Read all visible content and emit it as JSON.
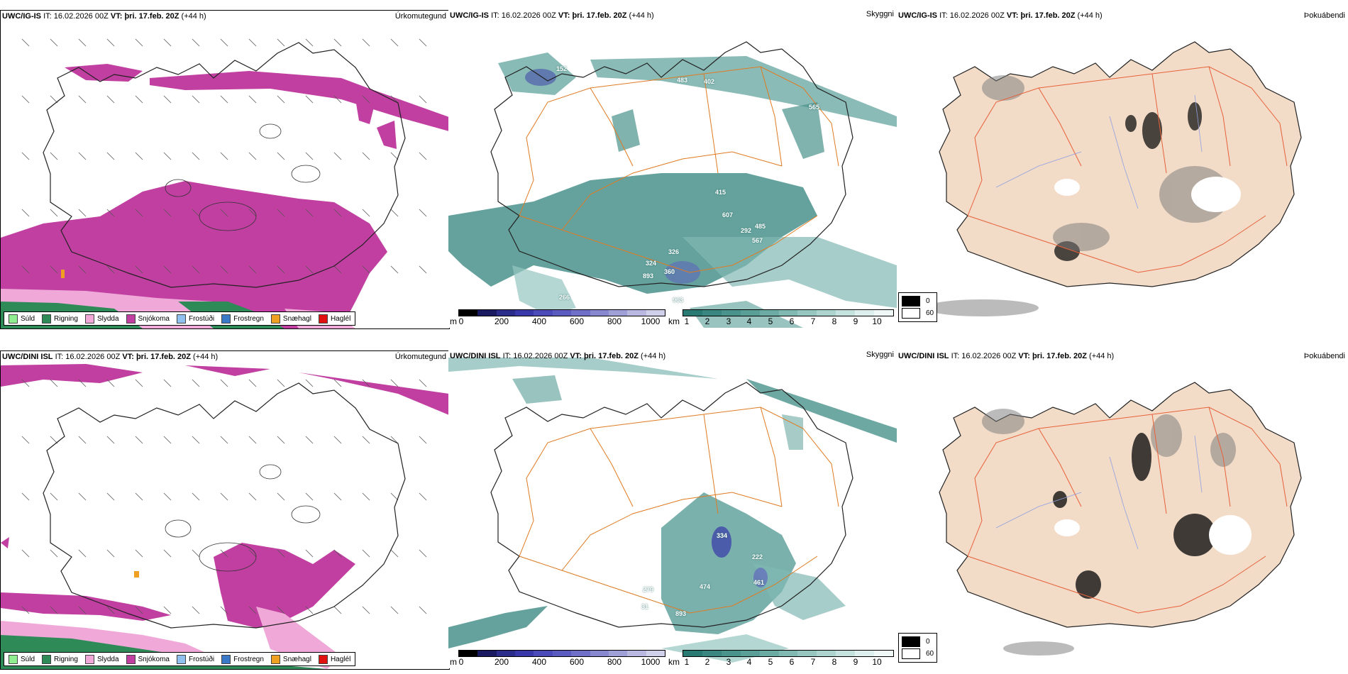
{
  "rows": [
    {
      "model": "UWC/IG-IS",
      "it_label": "IT:",
      "it_value": "16.02.2026 00Z",
      "vt_label": "VT:",
      "vt_value": "þri. 17.feb. 20Z",
      "lead": "(+44 h)"
    },
    {
      "model": "UWC/DINI ISL",
      "it_label": "IT:",
      "it_value": "16.02.2026 00Z",
      "vt_label": "VT:",
      "vt_value": "þri. 17.feb. 20Z",
      "lead": "(+44 h)"
    }
  ],
  "panel_titles": {
    "precip": "Úrkomutegund",
    "visibility": "Skyggni",
    "fog": "Þokuábendi"
  },
  "precip_legend": [
    {
      "label": "Súld",
      "color": "#90ee90"
    },
    {
      "label": "Rigning",
      "color": "#2e8b57"
    },
    {
      "label": "Slydda",
      "color": "#f0a8d8"
    },
    {
      "label": "Snjókoma",
      "color": "#c03fa0"
    },
    {
      "label": "Frostúði",
      "color": "#90c0f0"
    },
    {
      "label": "Frostregn",
      "color": "#3a78c8"
    },
    {
      "label": "Snæhagl",
      "color": "#f0a020"
    },
    {
      "label": "Haglél",
      "color": "#e01010"
    }
  ],
  "vis_bar_m": {
    "unit": "m",
    "ticks": [
      "0",
      "200",
      "400",
      "600",
      "800",
      "1000"
    ],
    "colors": [
      "#000000",
      "#1a1a60",
      "#2c2c8a",
      "#3838a8",
      "#4a4ab8",
      "#5c5cc0",
      "#7070c8",
      "#8888d0",
      "#a0a0d8",
      "#b8b8e0",
      "#d0d0ea"
    ]
  },
  "vis_bar_km": {
    "unit": "km",
    "ticks": [
      "1",
      "2",
      "3",
      "4",
      "5",
      "6",
      "7",
      "8",
      "9",
      "10"
    ],
    "colors": [
      "#2a7a74",
      "#3a8680",
      "#4a928c",
      "#5a9e98",
      "#6caaa4",
      "#80b8b2",
      "#96c6c0",
      "#aed4cf",
      "#c6e2de",
      "#def0ee",
      "#f0f8f7"
    ]
  },
  "fog_legend": [
    {
      "value": "0",
      "color": "#000000"
    },
    {
      "value": "60",
      "color": "#ffffff"
    }
  ],
  "vis_labels_top": [
    "152",
    "483",
    "402",
    "565",
    "415",
    "607",
    "485",
    "292",
    "567",
    "326",
    "324",
    "893",
    "360",
    "266",
    "963"
  ],
  "vis_labels_bottom": [
    "334",
    "222",
    "461",
    "279",
    "474",
    "31",
    "893"
  ]
}
